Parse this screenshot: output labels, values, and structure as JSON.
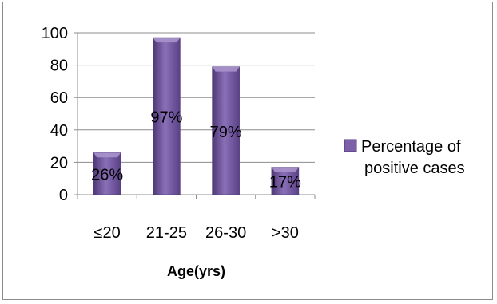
{
  "chart_data": {
    "type": "bar",
    "categories": [
      "≤20",
      "21-25",
      "26-30",
      ">30"
    ],
    "series": [
      {
        "name": "Percentage of positive cases",
        "values": [
          26,
          97,
          79,
          17
        ]
      }
    ],
    "data_labels": [
      "26%",
      "97%",
      "79%",
      "17%"
    ],
    "title": "",
    "xlabel": "Age(yrs)",
    "ylabel": "",
    "ylim": [
      0,
      100
    ],
    "yticks": [
      "0",
      "20",
      "40",
      "60",
      "80",
      "100"
    ],
    "grid": true,
    "legend": {
      "placement": "right",
      "lines": [
        "Percentage of",
        "positive cases"
      ]
    },
    "colors": {
      "bar": "#7b5fa8",
      "bar_dark": "#4e3775",
      "bar_light": "#a894cc",
      "grid": "#8c8c8c"
    }
  }
}
